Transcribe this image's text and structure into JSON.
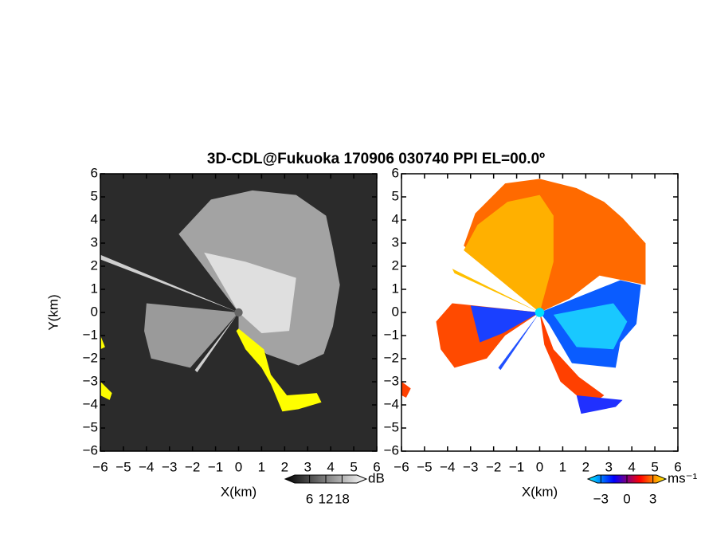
{
  "chart_data": [
    {
      "type": "radar-ppi",
      "title": "3D-CDL@Fukuoka 170906 030740 PPI EL=00.0º",
      "xlabel": "X(km)",
      "ylabel": "Y(km)",
      "xlim": [
        -6,
        6
      ],
      "ylim": [
        -6,
        6
      ],
      "xticks": [
        {
          "value": -6,
          "label": "−6"
        },
        {
          "value": -5,
          "label": "−5"
        },
        {
          "value": -4,
          "label": "−4"
        },
        {
          "value": -3,
          "label": "−3"
        },
        {
          "value": -2,
          "label": "−2"
        },
        {
          "value": -1,
          "label": "−1"
        },
        0,
        1,
        2,
        3,
        4,
        5,
        6
      ],
      "yticks": [
        {
          "value": -6,
          "label": "−6"
        },
        {
          "value": -5,
          "label": "−5"
        },
        {
          "value": -4,
          "label": "−4"
        },
        {
          "value": -3,
          "label": "−3"
        },
        {
          "value": -2,
          "label": "−2"
        },
        {
          "value": -1,
          "label": "−1"
        },
        0,
        1,
        2,
        3,
        4,
        5,
        6
      ],
      "colorbar": {
        "label": "dB",
        "lim": [
          -3,
          27
        ],
        "ticks": [
          6,
          12,
          18
        ],
        "colors": [
          "#000000",
          "#ffffff"
        ]
      }
    },
    {
      "type": "radar-ppi",
      "xlabel": "X(km)",
      "xlim": [
        -6,
        6
      ],
      "ylim": [
        -6,
        6
      ],
      "xticks": [
        {
          "value": -6,
          "label": "−6"
        },
        {
          "value": -5,
          "label": "−5"
        },
        {
          "value": -4,
          "label": "−4"
        },
        {
          "value": -3,
          "label": "−3"
        },
        {
          "value": -2,
          "label": "−2"
        },
        {
          "value": -1,
          "label": "−1"
        },
        0,
        1,
        2,
        3,
        4,
        5,
        6
      ],
      "yticks": [
        {
          "value": -6,
          "label": "−6"
        },
        {
          "value": -5,
          "label": "−5"
        },
        {
          "value": -4,
          "label": "−4"
        },
        {
          "value": -3,
          "label": "−3"
        },
        {
          "value": -2,
          "label": "−2"
        },
        {
          "value": -1,
          "label": "−1"
        },
        0,
        1,
        2,
        3,
        4,
        5,
        6
      ],
      "colorbar": {
        "label": "ms⁻¹",
        "lim": [
          -4.5,
          4.5
        ],
        "ticks": [
          {
            "value": -3,
            "label": "−3"
          },
          0,
          3
        ],
        "colors": [
          "#00ffff",
          "#0000ff",
          "#ff0000",
          "#ffff00"
        ]
      }
    }
  ]
}
